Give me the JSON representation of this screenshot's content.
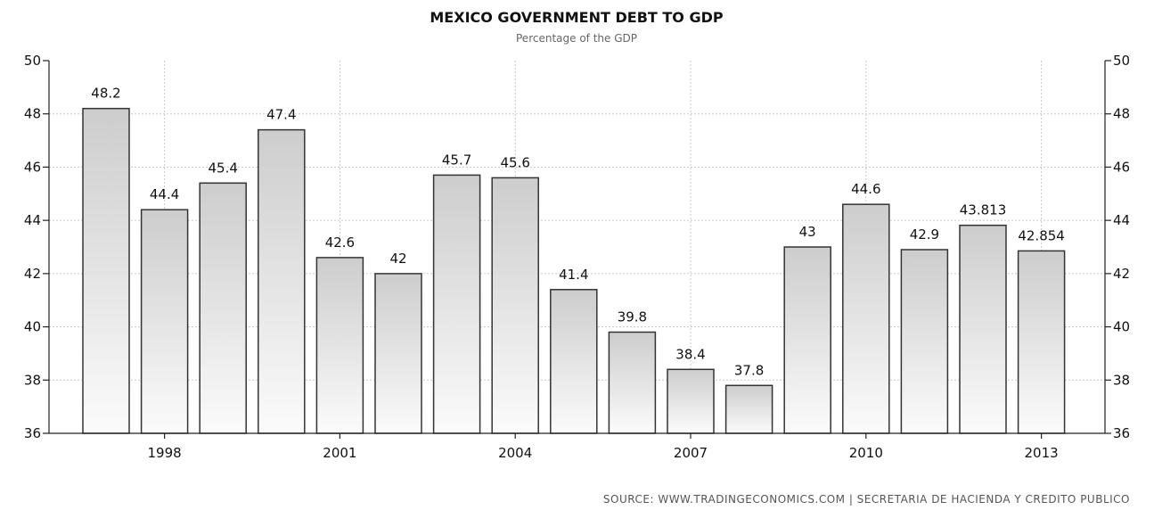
{
  "chart_data": {
    "type": "bar",
    "title": "MEXICO GOVERNMENT DEBT TO GDP",
    "subtitle": "Percentage of the GDP",
    "source": "SOURCE: WWW.TRADINGECONOMICS.COM | SECRETARIA DE HACIENDA Y CREDITO PUBLICO",
    "categories": [
      "1997",
      "1998",
      "1999",
      "2000",
      "2001",
      "2002",
      "2003",
      "2004",
      "2005",
      "2006",
      "2007",
      "2008",
      "2009",
      "2010",
      "2011",
      "2012",
      "2013"
    ],
    "values": [
      48.2,
      44.4,
      45.4,
      47.4,
      42.6,
      42,
      45.7,
      45.6,
      41.4,
      39.8,
      38.4,
      37.8,
      43,
      44.6,
      42.9,
      43.813,
      42.854
    ],
    "value_labels": [
      "48.2",
      "44.4",
      "45.4",
      "47.4",
      "42.6",
      "42",
      "45.7",
      "45.6",
      "41.4",
      "39.8",
      "38.4",
      "37.8",
      "43",
      "44.6",
      "42.9",
      "43.813",
      "42.854"
    ],
    "x_tick_labels": [
      "1998",
      "2001",
      "2004",
      "2007",
      "2010",
      "2013"
    ],
    "y_ticks": [
      36,
      38,
      40,
      42,
      44,
      46,
      48,
      50
    ],
    "y_tick_labels": [
      "36",
      "38",
      "40",
      "42",
      "44",
      "46",
      "48",
      "50"
    ],
    "ylim": [
      36,
      50
    ],
    "xlabel": "",
    "ylabel": "",
    "grid": true,
    "legend": "none",
    "colors": {
      "bar_top": "#cdcdcd",
      "bar_bottom": "#fbfbfb",
      "bar_stroke": "#333333",
      "grid": "#c8c8c8",
      "axis": "#222222"
    }
  }
}
